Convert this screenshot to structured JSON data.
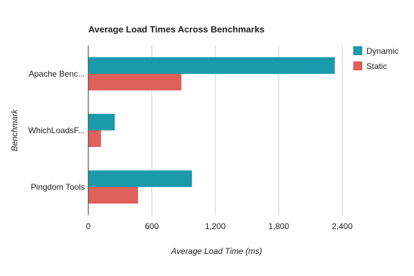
{
  "chart_data": {
    "type": "bar",
    "orientation": "horizontal",
    "title": "Average Load Times Across Benchmarks",
    "xlabel": "Average Load Time (ms)",
    "ylabel": "Benchmark",
    "categories": [
      "Apache Benc...",
      "WhichLoadsF...",
      "Pingdom Tools"
    ],
    "series": [
      {
        "name": "Dynamic",
        "color": "#1a9aaa",
        "values": [
          2330,
          250,
          980
        ]
      },
      {
        "name": "Static",
        "color": "#e0605a",
        "values": [
          880,
          120,
          470
        ]
      }
    ],
    "xlim": [
      0,
      3000
    ],
    "xticks": [
      0,
      600,
      1200,
      1800,
      2400
    ],
    "xtick_labels": [
      "0",
      "600",
      "1,200",
      "1,800",
      "2,400"
    ],
    "grid": true,
    "legend_position": "top-right"
  }
}
